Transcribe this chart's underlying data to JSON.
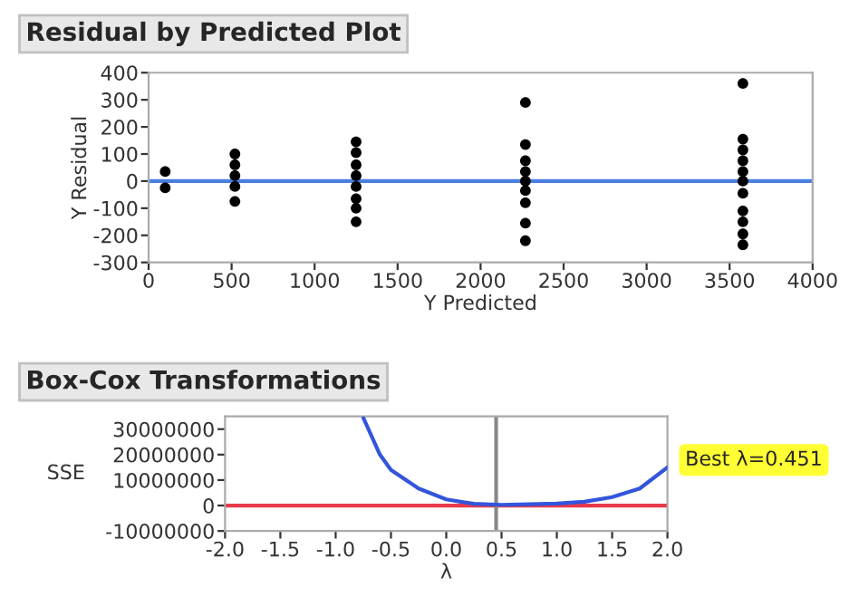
{
  "chart_data": [
    {
      "type": "scatter",
      "title": "Residual by Predicted Plot",
      "xlabel": "Y Predicted",
      "ylabel": "Y Residual",
      "x": [
        100,
        100,
        520,
        520,
        520,
        520,
        520,
        1250,
        1250,
        1250,
        1250,
        1250,
        1250,
        1250,
        1250,
        2270,
        2270,
        2270,
        2270,
        2270,
        2270,
        2270,
        2270,
        2270,
        3580,
        3580,
        3580,
        3580,
        3580,
        3580,
        3580,
        3580,
        3580,
        3580,
        3580
      ],
      "values": [
        35,
        -25,
        100,
        60,
        20,
        -20,
        -75,
        145,
        105,
        60,
        20,
        -20,
        -65,
        -100,
        -150,
        290,
        135,
        75,
        35,
        0,
        -35,
        -80,
        -155,
        -220,
        360,
        155,
        115,
        75,
        35,
        0,
        -45,
        -110,
        -150,
        -195,
        -235
      ],
      "color": "#000000",
      "marker": "circle",
      "grid": false,
      "xlim": [
        0,
        4000
      ],
      "ylim": [
        -300,
        400
      ],
      "xticks": [
        0,
        500,
        1000,
        1500,
        2000,
        2500,
        3000,
        3500,
        4000
      ],
      "yticks": [
        -300,
        -200,
        -100,
        0,
        100,
        200,
        300,
        400
      ],
      "ref_lines": [
        {
          "axis": "y",
          "value": 0,
          "label": null,
          "color": "#4a7fe0"
        }
      ]
    },
    {
      "type": "line",
      "title": "Box-Cox Transformations",
      "xlabel": "λ",
      "ylabel": "SSE",
      "x": [
        -0.75,
        -0.6,
        -0.5,
        -0.25,
        0,
        0.25,
        0.5,
        0.75,
        1.0,
        1.25,
        1.5,
        1.75,
        2.0
      ],
      "values": [
        34500000,
        20000000,
        14000000,
        6700000,
        2400000,
        700000,
        300000,
        500000,
        800000,
        1500000,
        3300000,
        6700000,
        15000000
      ],
      "color": "#3355dd",
      "grid": false,
      "xlim": [
        -2,
        2
      ],
      "ylim": [
        -10000000,
        35000000
      ],
      "xticks": [
        {
          "value": -2,
          "label": "-2.0"
        },
        {
          "value": -1.5,
          "label": "-1.5"
        },
        {
          "value": -1,
          "label": "-1.0"
        },
        {
          "value": -0.5,
          "label": "-0.5"
        },
        {
          "value": 0,
          "label": "0.0"
        },
        {
          "value": 0.5,
          "label": "0.5"
        },
        {
          "value": 1,
          "label": "1.0"
        },
        {
          "value": 1.5,
          "label": "1.5"
        },
        {
          "value": 2,
          "label": "2.0"
        }
      ],
      "yticks": [
        -10000000,
        0,
        10000000,
        20000000,
        30000000
      ],
      "ref_lines": [
        {
          "axis": "y",
          "value": 0,
          "label": null,
          "color": "#e83a4a"
        },
        {
          "axis": "x",
          "value": 0.451,
          "label": null,
          "color": "#888888"
        }
      ],
      "annotations": [
        "Best λ=0.451"
      ]
    }
  ]
}
